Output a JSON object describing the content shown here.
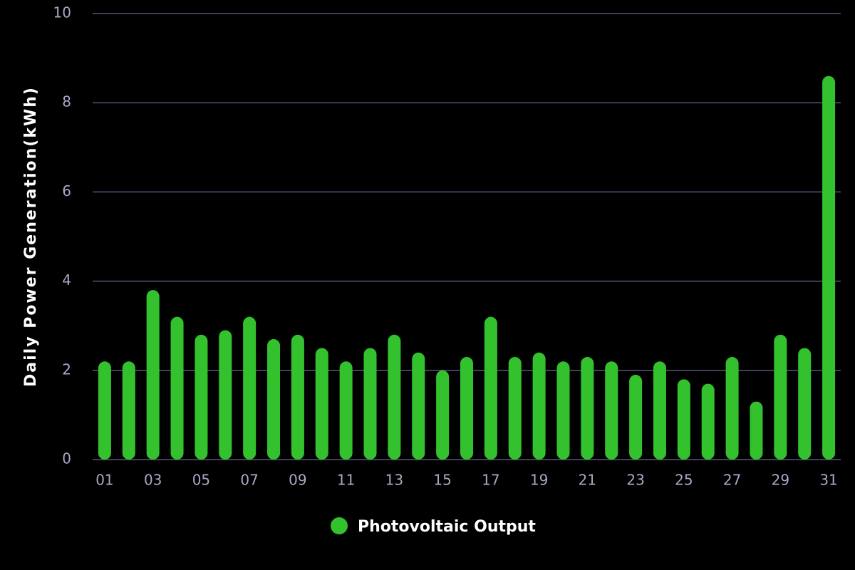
{
  "chart_data": {
    "type": "bar",
    "ylabel": "Daily Power Generation(kWh)",
    "categories": [
      "01",
      null,
      "03",
      null,
      "05",
      null,
      "07",
      null,
      "09",
      null,
      "11",
      null,
      "13",
      null,
      "15",
      null,
      "17",
      null,
      "19",
      null,
      "21",
      null,
      "23",
      null,
      "25",
      null,
      "27",
      null,
      "29",
      null,
      "31"
    ],
    "series": [
      {
        "name": "Photovoltaic Output",
        "color": "#33c12e",
        "values": [
          2.2,
          2.2,
          3.8,
          3.2,
          2.8,
          2.9,
          3.2,
          2.7,
          2.8,
          2.5,
          2.2,
          2.5,
          2.8,
          2.4,
          2.0,
          2.3,
          3.2,
          2.3,
          2.4,
          2.2,
          2.3,
          2.2,
          1.9,
          2.2,
          1.8,
          1.7,
          2.3,
          1.3,
          2.8,
          2.5,
          8.6
        ]
      }
    ],
    "ylim": [
      0,
      10
    ],
    "yticks": [
      0,
      2,
      4,
      6,
      8,
      10
    ],
    "grid": true
  }
}
